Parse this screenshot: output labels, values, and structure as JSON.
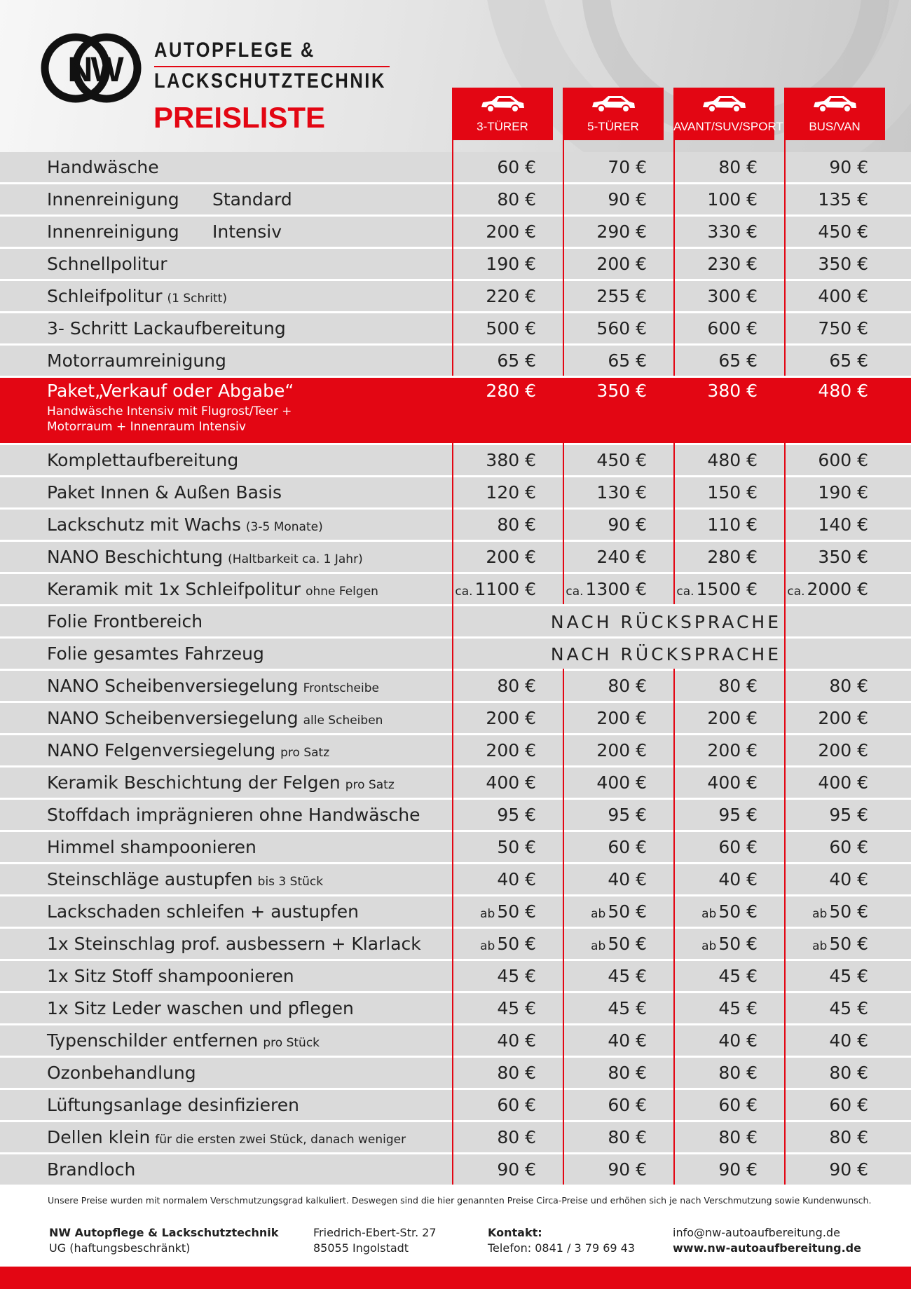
{
  "header": {
    "logo": "NW",
    "company_line1": "AUTOPFLEGE &",
    "company_line2": "LACKSCHUTZTECHNIK",
    "title": "PREISLISTE"
  },
  "columns": [
    "3-TÜRER",
    "5-TÜRER",
    "AVANT/SUV/SPORT",
    "BUS/VAN"
  ],
  "rows": [
    {
      "name": "Handwäsche",
      "prices": [
        "60 €",
        "70 €",
        "80 €",
        "90 €"
      ]
    },
    {
      "name": "Innenreinigung",
      "variant": "Standard",
      "prices": [
        "80 €",
        "90 €",
        "100 €",
        "135 €"
      ]
    },
    {
      "name": "Innenreinigung",
      "variant": "Intensiv",
      "prices": [
        "200 €",
        "290 €",
        "330 €",
        "450 €"
      ]
    },
    {
      "name": "Schnellpolitur",
      "prices": [
        "190 €",
        "200 €",
        "230 €",
        "350 €"
      ]
    },
    {
      "name": "Schleifpolitur",
      "note": "(1 Schritt)",
      "prices": [
        "220 €",
        "255 €",
        "300 €",
        "400 €"
      ]
    },
    {
      "name": "3- Schritt Lackaufbereitung",
      "prices": [
        "500 €",
        "560 €",
        "600 €",
        "750 €"
      ]
    },
    {
      "name": "Motorraumreinigung",
      "prices": [
        "65 €",
        "65 €",
        "65 €",
        "65 €"
      ]
    },
    {
      "name": "Paket„Verkauf oder Abgabe“",
      "highlight": true,
      "description": [
        "Handwäsche Intensiv mit Flugrost/Teer +",
        "Motorraum + Innenraum Intensiv"
      ],
      "prices": [
        "280 €",
        "350 €",
        "380 €",
        "480 €"
      ]
    },
    {
      "name": "Komplettaufbereitung",
      "prices": [
        "380 €",
        "450 €",
        "480 €",
        "600 €"
      ]
    },
    {
      "name": "Paket Innen & Außen Basis",
      "prices": [
        "120 €",
        "130 €",
        "150 €",
        "190 €"
      ]
    },
    {
      "name": "Lackschutz mit Wachs",
      "note": "(3-5 Monate)",
      "prices": [
        "80 €",
        "90 €",
        "110 €",
        "140 €"
      ]
    },
    {
      "name": "NANO Beschichtung",
      "note": "(Haltbarkeit ca. 1 Jahr)",
      "prices": [
        "200 €",
        "240 €",
        "280 €",
        "350 €"
      ]
    },
    {
      "name": "Keramik mit 1x Schleifpolitur",
      "note": "ohne Felgen",
      "prices": [
        {
          "prefix": "ca.",
          "amount": "1100 €"
        },
        {
          "prefix": "ca.",
          "amount": "1300 €"
        },
        {
          "prefix": "ca.",
          "amount": "1500 €"
        },
        {
          "prefix": "ca.",
          "amount": "2000 €"
        }
      ]
    },
    {
      "name": "Folie Frontbereich",
      "span": "NACH RÜCKSPRACHE"
    },
    {
      "name": "Folie gesamtes Fahrzeug",
      "span": "NACH RÜCKSPRACHE"
    },
    {
      "name": "NANO Scheibenversiegelung",
      "note": "Frontscheibe",
      "prices": [
        "80 €",
        "80 €",
        "80 €",
        "80 €"
      ]
    },
    {
      "name": "NANO Scheibenversiegelung",
      "note": "alle Scheiben",
      "prices": [
        "200 €",
        "200 €",
        "200 €",
        "200 €"
      ]
    },
    {
      "name": "NANO Felgenversiegelung",
      "note": "pro Satz",
      "prices": [
        "200 €",
        "200 €",
        "200 €",
        "200 €"
      ]
    },
    {
      "name": "Keramik Beschichtung der Felgen",
      "note": "pro Satz",
      "prices": [
        "400 €",
        "400 €",
        "400 €",
        "400 €"
      ]
    },
    {
      "name": "Stoffdach imprägnieren ohne Handwäsche",
      "prices": [
        "95 €",
        "95 €",
        "95 €",
        "95 €"
      ]
    },
    {
      "name": "Himmel shampoonieren",
      "prices": [
        "50 €",
        "60 €",
        "60 €",
        "60 €"
      ]
    },
    {
      "name": "Steinschläge austupfen",
      "note": "bis 3 Stück",
      "prices": [
        "40 €",
        "40 €",
        "40 €",
        "40 €"
      ]
    },
    {
      "name": "Lackschaden schleifen + austupfen",
      "prices": [
        {
          "prefix": "ab",
          "amount": "50 €"
        },
        {
          "prefix": "ab",
          "amount": "50 €"
        },
        {
          "prefix": "ab",
          "amount": "50 €"
        },
        {
          "prefix": "ab",
          "amount": "50 €"
        }
      ]
    },
    {
      "name": "1x Steinschlag prof. ausbessern + Klarlack",
      "prices": [
        {
          "prefix": "ab",
          "amount": "50 €"
        },
        {
          "prefix": "ab",
          "amount": "50 €"
        },
        {
          "prefix": "ab",
          "amount": "50 €"
        },
        {
          "prefix": "ab",
          "amount": "50 €"
        }
      ]
    },
    {
      "name": "1x Sitz Stoff shampoonieren",
      "prices": [
        "45 €",
        "45 €",
        "45 €",
        "45 €"
      ]
    },
    {
      "name": "1x Sitz Leder waschen und pflegen",
      "prices": [
        "45 €",
        "45 €",
        "45 €",
        "45 €"
      ]
    },
    {
      "name": "Typenschilder entfernen",
      "note": "pro Stück",
      "prices": [
        "40 €",
        "40 €",
        "40 €",
        "40 €"
      ]
    },
    {
      "name": "Ozonbehandlung",
      "prices": [
        "80 €",
        "80 €",
        "80 €",
        "80 €"
      ]
    },
    {
      "name": "Lüftungsanlage desinfizieren",
      "prices": [
        "60 €",
        "60 €",
        "60 €",
        "60 €"
      ]
    },
    {
      "name": "Dellen klein",
      "note": "für die ersten zwei Stück, danach weniger",
      "prices": [
        "80 €",
        "80 €",
        "80 €",
        "80 €"
      ]
    },
    {
      "name": "Brandloch",
      "prices": [
        "90 €",
        "90 €",
        "90 €",
        "90 €"
      ]
    }
  ],
  "footer": {
    "disclaimer": "Unsere Preise wurden mit normalem Verschmutzungsgrad kalkuliert. Deswegen sind die hier genannten Preise Circa-Preise und erhöhen sich je nach Verschmutzung sowie Kundenwunsch.",
    "company": "NW Autopflege & Lackschutztechnik",
    "company_form": "UG (haftungsbeschränkt)",
    "street": "Friedrich-Ebert-Str. 27",
    "city": "85055 Ingolstadt",
    "contact_label": "Kontakt:",
    "phone": "Telefon: 0841 / 3 79 69 43",
    "email": "info@nw-autoaufbereitung.de",
    "website": "www.nw-autoaufbereitung.de"
  }
}
